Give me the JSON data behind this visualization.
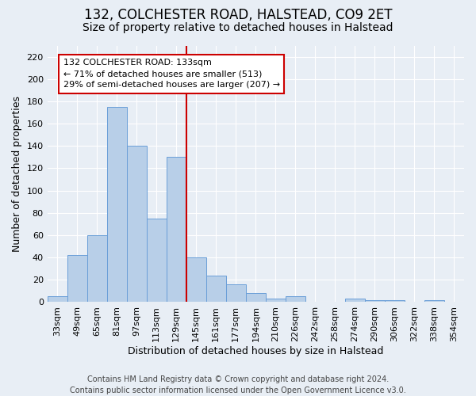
{
  "title_line1": "132, COLCHESTER ROAD, HALSTEAD, CO9 2ET",
  "title_line2": "Size of property relative to detached houses in Halstead",
  "xlabel": "Distribution of detached houses by size in Halstead",
  "ylabel": "Number of detached properties",
  "footnote": "Contains HM Land Registry data © Crown copyright and database right 2024.\nContains public sector information licensed under the Open Government Licence v3.0.",
  "categories": [
    "33sqm",
    "49sqm",
    "65sqm",
    "81sqm",
    "97sqm",
    "113sqm",
    "129sqm",
    "145sqm",
    "161sqm",
    "177sqm",
    "194sqm",
    "210sqm",
    "226sqm",
    "242sqm",
    "258sqm",
    "274sqm",
    "290sqm",
    "306sqm",
    "322sqm",
    "338sqm",
    "354sqm"
  ],
  "values": [
    5,
    42,
    60,
    175,
    140,
    75,
    130,
    40,
    24,
    16,
    8,
    3,
    5,
    0,
    0,
    3,
    2,
    2,
    0,
    2,
    0
  ],
  "bar_color": "#b8cfe8",
  "bar_edge_color": "#6a9fd8",
  "bar_edge_width": 0.7,
  "vline_color": "#cc0000",
  "annotation_text": "132 COLCHESTER ROAD: 133sqm\n← 71% of detached houses are smaller (513)\n29% of semi-detached houses are larger (207) →",
  "annotation_box_color": "#ffffff",
  "annotation_box_edge_color": "#cc0000",
  "ylim": [
    0,
    230
  ],
  "yticks": [
    0,
    20,
    40,
    60,
    80,
    100,
    120,
    140,
    160,
    180,
    200,
    220
  ],
  "bg_color": "#e8eef5",
  "grid_color": "#ffffff",
  "title1_fontsize": 12,
  "title2_fontsize": 10,
  "axis_fontsize": 9,
  "tick_fontsize": 8,
  "footnote_fontsize": 7
}
